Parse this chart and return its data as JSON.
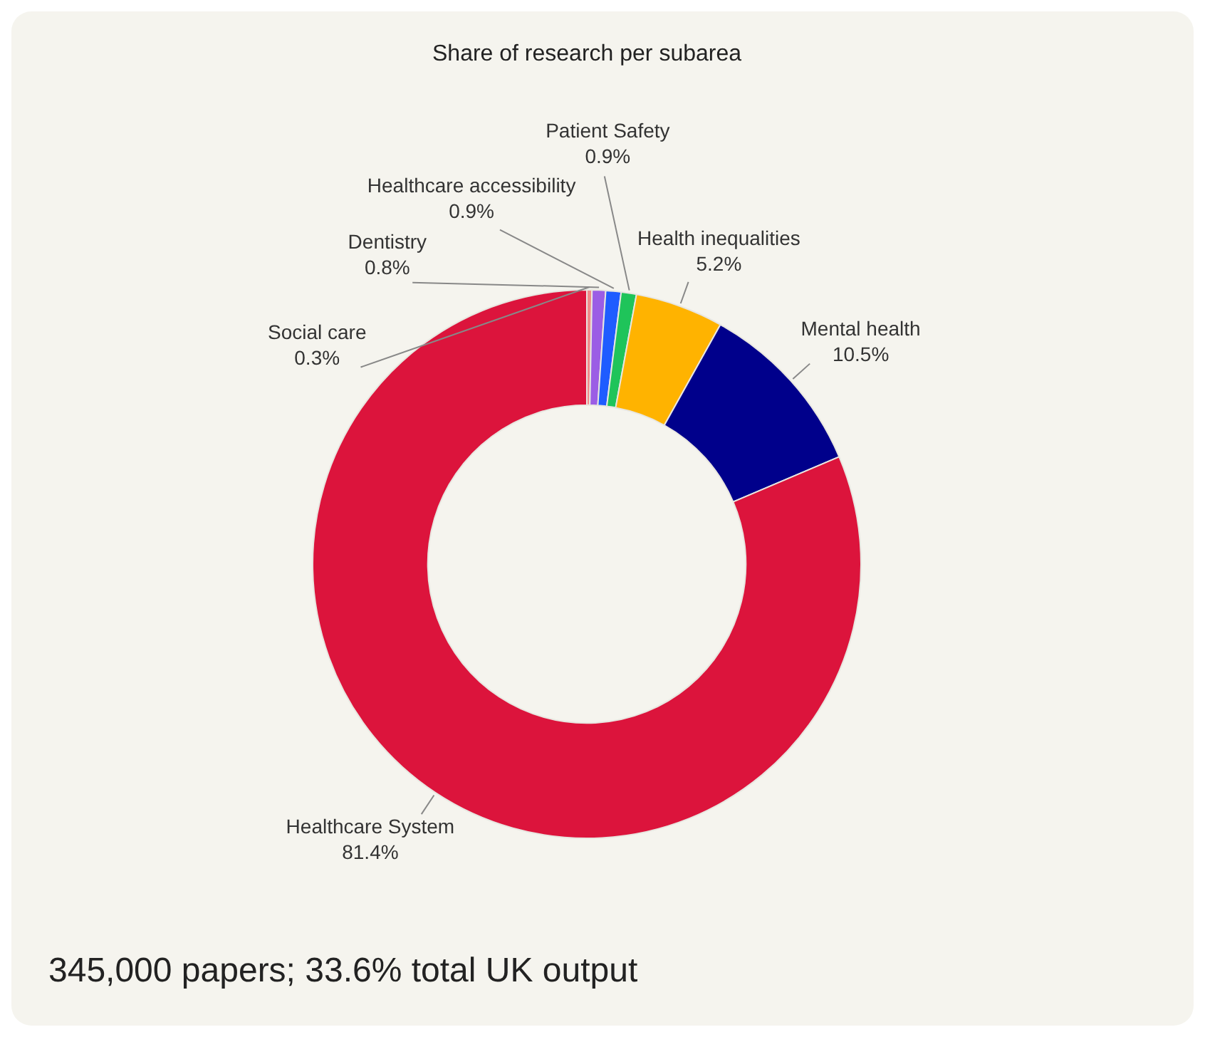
{
  "chart_data": {
    "type": "donut",
    "title": "Share of research per subarea",
    "categories": [
      "Social care",
      "Dentistry",
      "Healthcare accessibility",
      "Patient Safety",
      "Health inequalities",
      "Mental health",
      "Healthcare System"
    ],
    "values": [
      0.3,
      0.8,
      0.9,
      0.9,
      5.2,
      10.5,
      81.4
    ],
    "colors": [
      "#f08a8a",
      "#9b5de5",
      "#1f5cff",
      "#1fc45a",
      "#ffb300",
      "#00008b",
      "#dc143c"
    ],
    "value_labels": [
      "0.3%",
      "0.8%",
      "0.9%",
      "0.9%",
      "5.2%",
      "10.5%",
      "81.4%"
    ],
    "legend": false,
    "annotations": [
      "345,000 papers; 33.6% total UK output"
    ]
  }
}
